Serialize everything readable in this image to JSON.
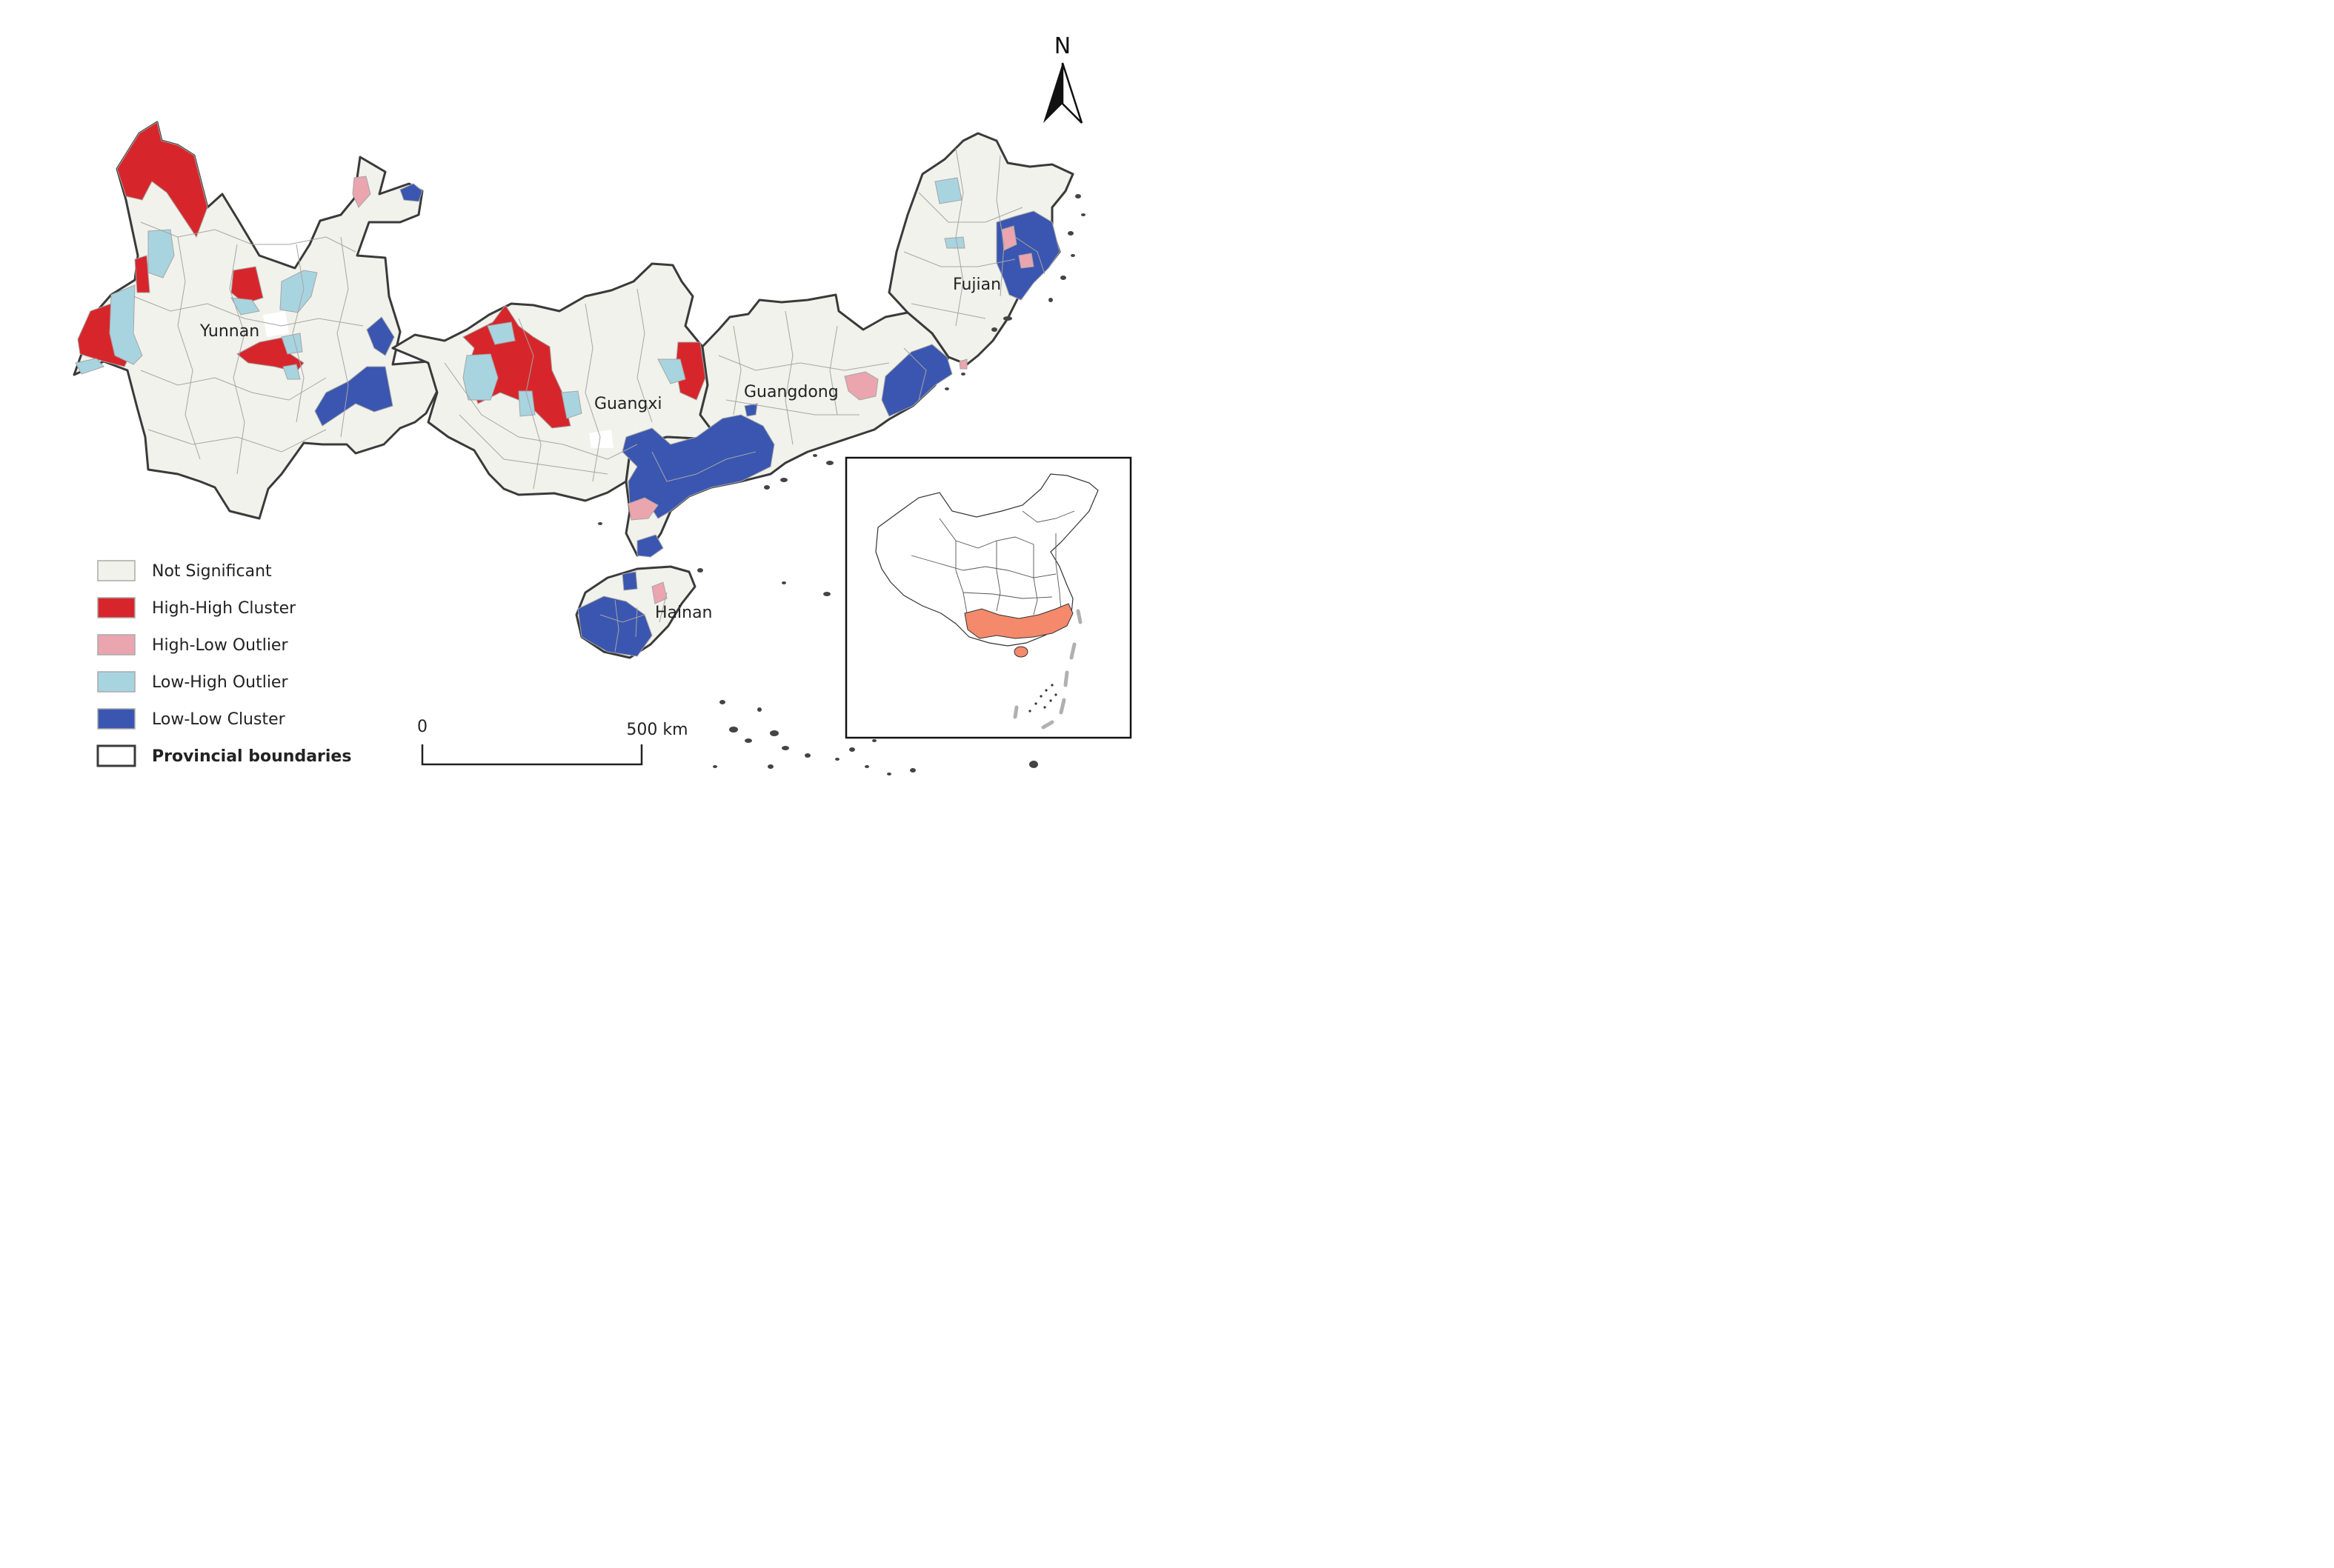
{
  "provinces": [
    {
      "name": "Yunnan"
    },
    {
      "name": "Guangxi"
    },
    {
      "name": "Guangdong"
    },
    {
      "name": "Fujian"
    },
    {
      "name": "Hainan"
    }
  ],
  "legend": {
    "items": [
      {
        "label": "Not Significant",
        "color": "#f2f2ec"
      },
      {
        "label": "High-High Cluster",
        "color": "#d7262b"
      },
      {
        "label": "High-Low Outlier",
        "color": "#eba5ae"
      },
      {
        "label": "Low-High Outlier",
        "color": "#a8d4e0"
      },
      {
        "label": "Low-Low Cluster",
        "color": "#3a56b0"
      }
    ],
    "boundary_label": "Provincial boundaries"
  },
  "scale_bar": {
    "start_label": "0",
    "end_label": "500 km"
  },
  "north_arrow": {
    "label": "N",
    "icon": "north-arrow-icon"
  },
  "inset": {
    "highlight_color": "#f4896b"
  }
}
